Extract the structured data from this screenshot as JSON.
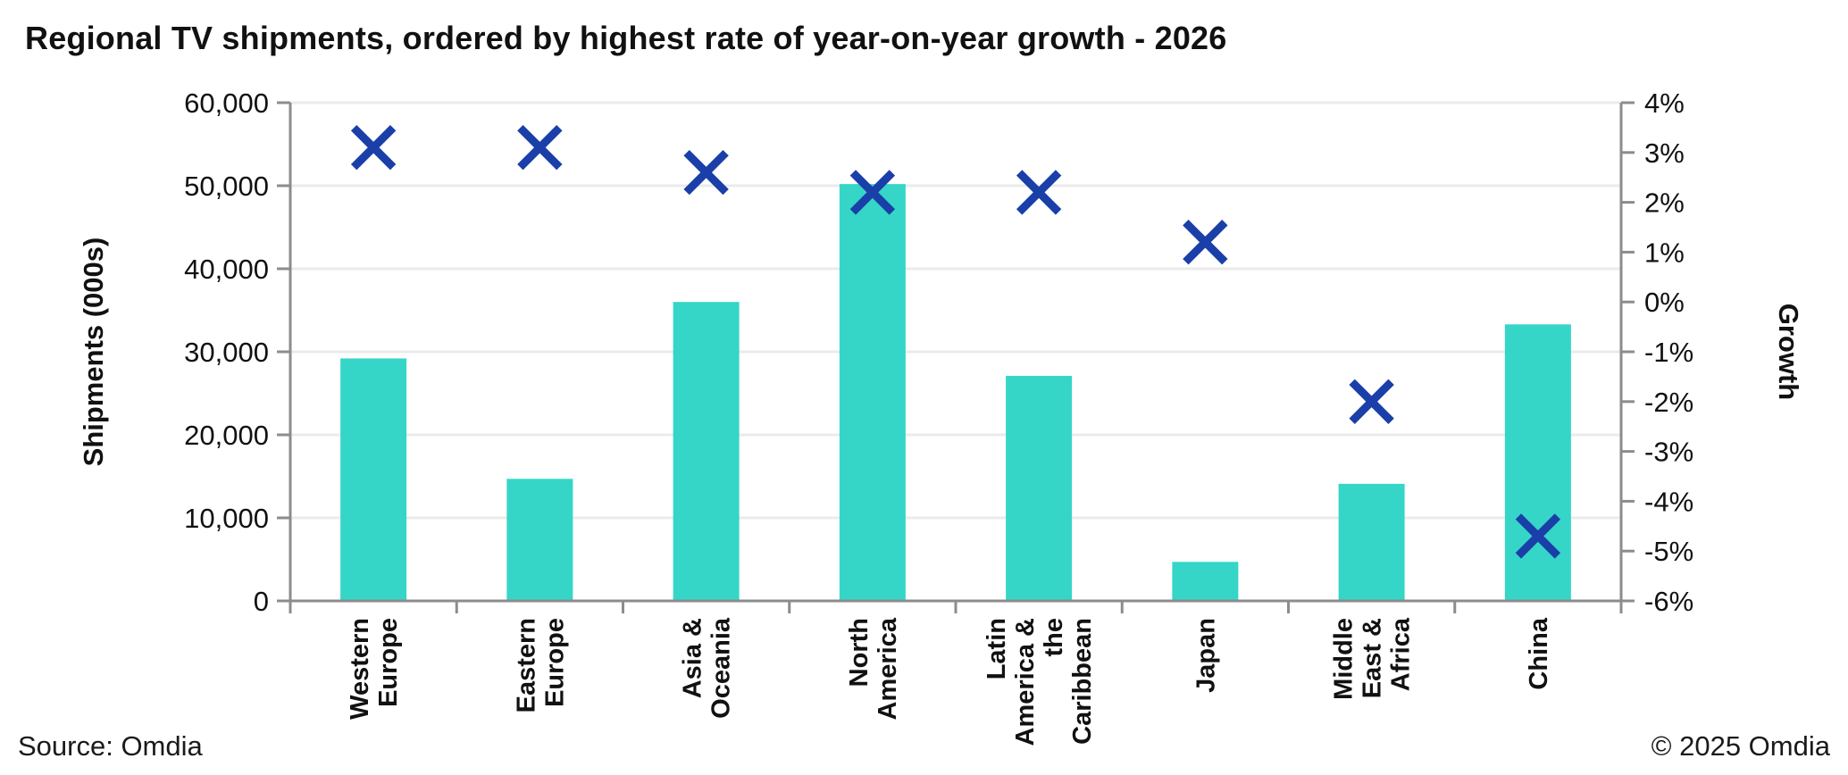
{
  "page": {
    "title": "Regional TV shipments, ordered by highest rate of year-on-year growth - 2026"
  },
  "footer": {
    "source": "Source: Omdia",
    "copyright": "© 2025 Omdia"
  },
  "chart_data": {
    "type": "bar",
    "subtype": "combo-bar-with-x-markers",
    "title": "Regional TV shipments, ordered by highest rate of year-on-year growth - 2026",
    "categories": [
      "Western Europe",
      "Eastern Europe",
      "Asia & Oceania",
      "North America",
      "Latin America & the Caribbean",
      "Japan",
      "Middle East & Africa",
      "China"
    ],
    "category_label_lines": [
      [
        "Western",
        "Europe"
      ],
      [
        "Eastern",
        "Europe"
      ],
      [
        "Asia &",
        "Oceania"
      ],
      [
        "North",
        "America"
      ],
      [
        "Latin",
        "America &",
        "the",
        "Caribbean"
      ],
      [
        "Japan"
      ],
      [
        "Middle",
        "East &",
        "Africa"
      ],
      [
        "China"
      ]
    ],
    "series": [
      {
        "name": "Shipments (000s)",
        "type": "bar",
        "axis": "left",
        "color": "#35d6c7",
        "values": [
          29200,
          14700,
          36000,
          50200,
          27100,
          4700,
          14100,
          33300
        ]
      },
      {
        "name": "Growth",
        "type": "scatter",
        "marker": "x",
        "axis": "right",
        "color": "#1a3fa8",
        "values": [
          3.1,
          3.1,
          2.6,
          2.2,
          2.2,
          1.2,
          -2.0,
          -4.7
        ]
      }
    ],
    "left_axis": {
      "label": "Shipments (000s)",
      "min": 0,
      "max": 60000,
      "tick_step": 10000,
      "tick_labels": [
        "0",
        "10,000",
        "20,000",
        "30,000",
        "40,000",
        "50,000",
        "60,000"
      ]
    },
    "right_axis": {
      "label": "Growth",
      "min": -6,
      "max": 4,
      "tick_step": 1,
      "tick_labels": [
        "-6%",
        "-5%",
        "-4%",
        "-3%",
        "-2%",
        "-1%",
        "0%",
        "1%",
        "2%",
        "3%",
        "4%"
      ]
    },
    "grid": true,
    "legend": "none",
    "colors": {
      "bar": "#35d6c7",
      "marker": "#1a3fa8",
      "gridline": "#ebebeb",
      "axis_line": "#8c8c8c",
      "text": "#111111"
    }
  }
}
